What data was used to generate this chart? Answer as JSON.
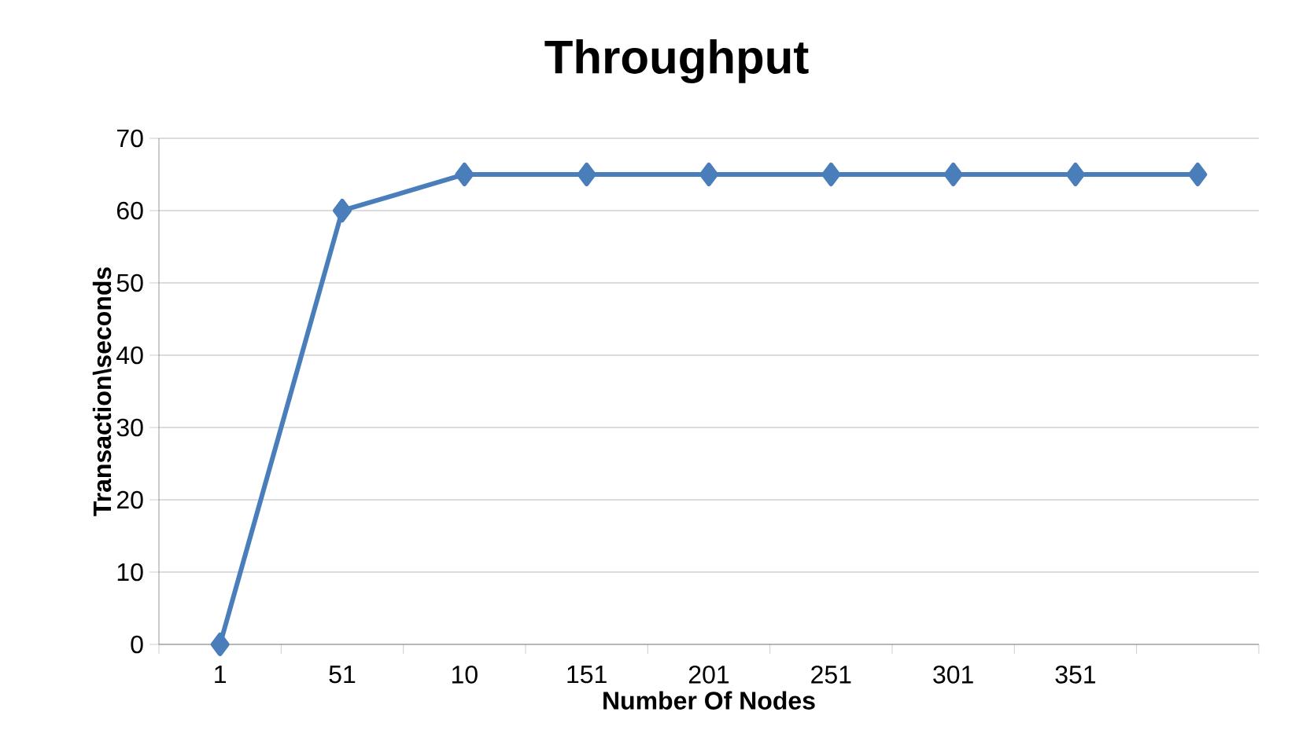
{
  "chart_data": {
    "type": "line",
    "title": "Throughput",
    "xlabel": "Number Of Nodes",
    "ylabel": "Transaction\\seconds",
    "categories": [
      "1",
      "51",
      "10",
      "151",
      "201",
      "251",
      "301",
      "351",
      null
    ],
    "series": [
      {
        "color": "#4a7ebb",
        "values": [
          0,
          60,
          65,
          65,
          65,
          65,
          65,
          65,
          65
        ]
      }
    ],
    "ylim": [
      0,
      70
    ],
    "yticks": [
      0,
      10,
      20,
      30,
      40,
      50,
      60,
      70
    ],
    "grid": "y",
    "marker": "diamond",
    "line_style": "solid"
  }
}
